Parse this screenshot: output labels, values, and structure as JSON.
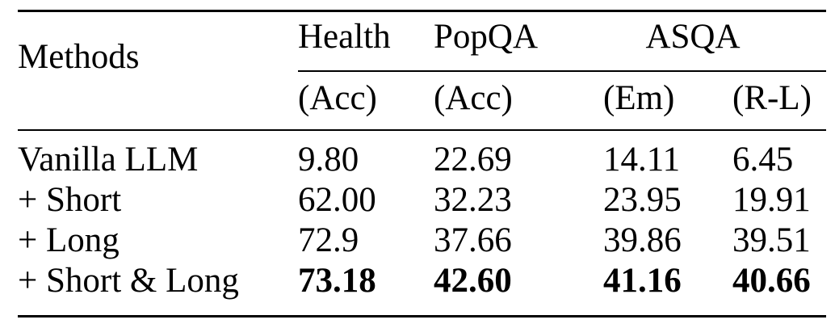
{
  "table": {
    "header": {
      "methods_label": "Methods",
      "groups": [
        {
          "label": "Health"
        },
        {
          "label": "PopQA"
        },
        {
          "label": "ASQA"
        }
      ],
      "sub_header": [
        "(Acc)",
        "(Acc)",
        "(Em)",
        "(R-L)"
      ]
    },
    "rows": [
      {
        "method": "Vanilla LLM",
        "values": [
          "9.80",
          "22.69",
          "14.11",
          "6.45"
        ],
        "bold": false
      },
      {
        "method": "+ Short",
        "values": [
          "62.00",
          "32.23",
          "23.95",
          "19.91"
        ],
        "bold": false
      },
      {
        "method": "+ Long",
        "values": [
          "72.9",
          "37.66",
          "39.86",
          "39.51"
        ],
        "bold": false
      },
      {
        "method": "+ Short & Long",
        "values": [
          "73.18",
          "42.60",
          "41.16",
          "40.66"
        ],
        "bold": true
      }
    ]
  },
  "colors": {
    "text": "#000000",
    "background": "#ffffff",
    "rule": "#000000"
  }
}
